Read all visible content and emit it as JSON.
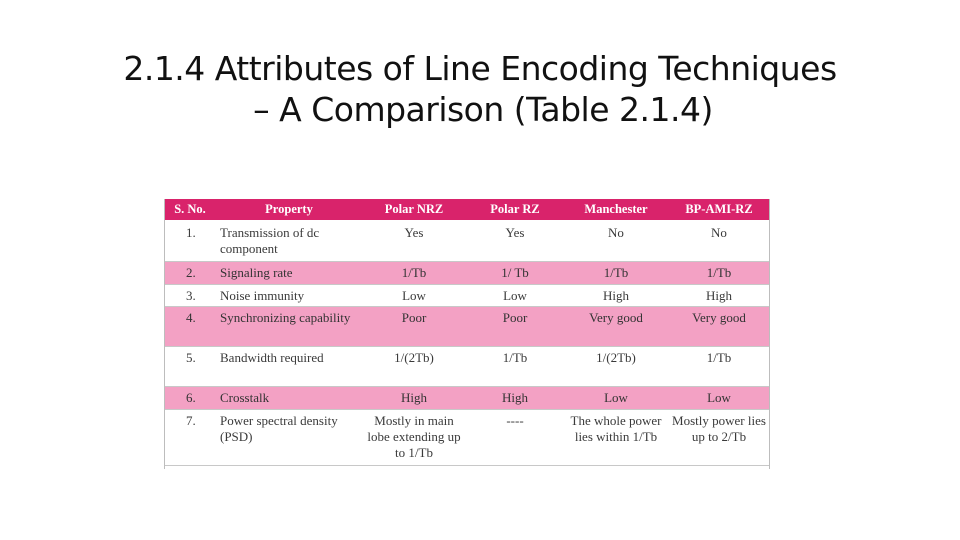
{
  "title": {
    "line1": "2.1.4   Attributes of Line Encoding Techniques",
    "line2": "– A Comparison (Table 2.1.4)"
  },
  "table": {
    "headers": [
      "S. No.",
      "Property",
      "Polar NRZ",
      "Polar RZ",
      "Manchester",
      "BP-AMI-RZ"
    ],
    "rows": [
      {
        "sno": "1.",
        "property": "Transmission of dc component",
        "nrz": "Yes",
        "rz": "Yes",
        "man": "No",
        "ami": "No"
      },
      {
        "sno": "2.",
        "property": "Signaling rate",
        "nrz": "1/Tb",
        "rz": "1/ Tb",
        "man": "1/Tb",
        "ami": "1/Tb"
      },
      {
        "sno": "3.",
        "property": "Noise immunity",
        "nrz": "Low",
        "rz": "Low",
        "man": "High",
        "ami": "High"
      },
      {
        "sno": "4.",
        "property": "Synchronizing capability",
        "nrz": "Poor",
        "rz": "Poor",
        "man": "Very good",
        "ami": "Very good"
      },
      {
        "sno": "5.",
        "property": "Bandwidth required",
        "nrz": "1/(2Tb)",
        "rz": "1/Tb",
        "man": "1/(2Tb)",
        "ami": "1/Tb"
      },
      {
        "sno": "6.",
        "property": "Crosstalk",
        "nrz": "High",
        "rz": "High",
        "man": "Low",
        "ami": "Low"
      },
      {
        "sno": "7.",
        "property": "Power spectral density (PSD)",
        "nrz": "Mostly in main lobe extending up to 1/Tb",
        "rz": "----",
        "man": "The whole power lies within 1/Tb",
        "ami": "Mostly power lies up to 2/Tb"
      }
    ]
  },
  "colors": {
    "header_bg": "#d9236b",
    "pink_row_bg": "#f3a1c4"
  }
}
